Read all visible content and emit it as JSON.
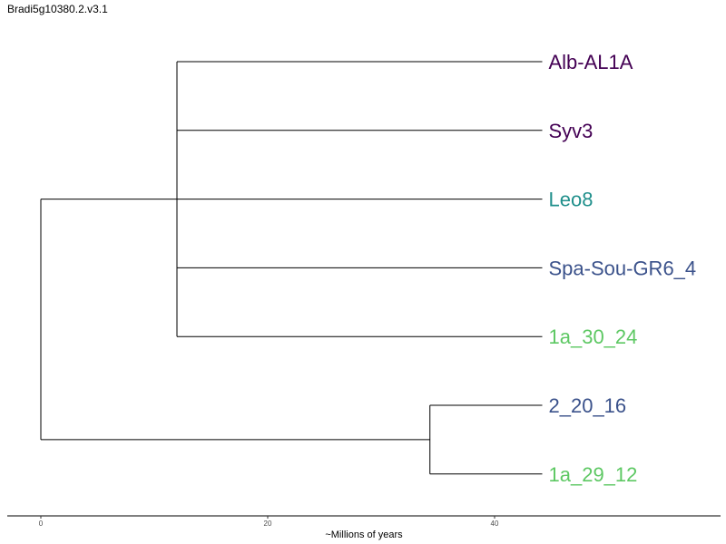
{
  "chart_data": {
    "type": "dendrogram",
    "title": "Bradi5g10380.2.v3.1",
    "xlabel": "~Millions of years",
    "x_ticks": [
      0,
      20,
      40
    ],
    "xlim": [
      0,
      60
    ],
    "leaves": [
      {
        "label": "Alb-AL1A",
        "color": "#440154"
      },
      {
        "label": "Syv3",
        "color": "#440154"
      },
      {
        "label": "Leo8",
        "color": "#21908C"
      },
      {
        "label": "Spa-Sou-GR6_4",
        "color": "#3B528B"
      },
      {
        "label": "1a_30_24",
        "color": "#5DC863"
      },
      {
        "label": "2_20_16",
        "color": "#3B528B"
      },
      {
        "label": "1a_29_12",
        "color": "#5DC863"
      }
    ],
    "tree": {
      "age": 0,
      "children": [
        {
          "age": 12,
          "children": [
            {
              "leaf": 0
            },
            {
              "leaf": 1
            },
            {
              "leaf": 2
            },
            {
              "leaf": 3
            },
            {
              "leaf": 4
            }
          ]
        },
        {
          "age": 34.3,
          "children": [
            {
              "leaf": 5
            },
            {
              "leaf": 6
            }
          ]
        }
      ]
    },
    "tip_age": 44.2,
    "grid": false
  }
}
